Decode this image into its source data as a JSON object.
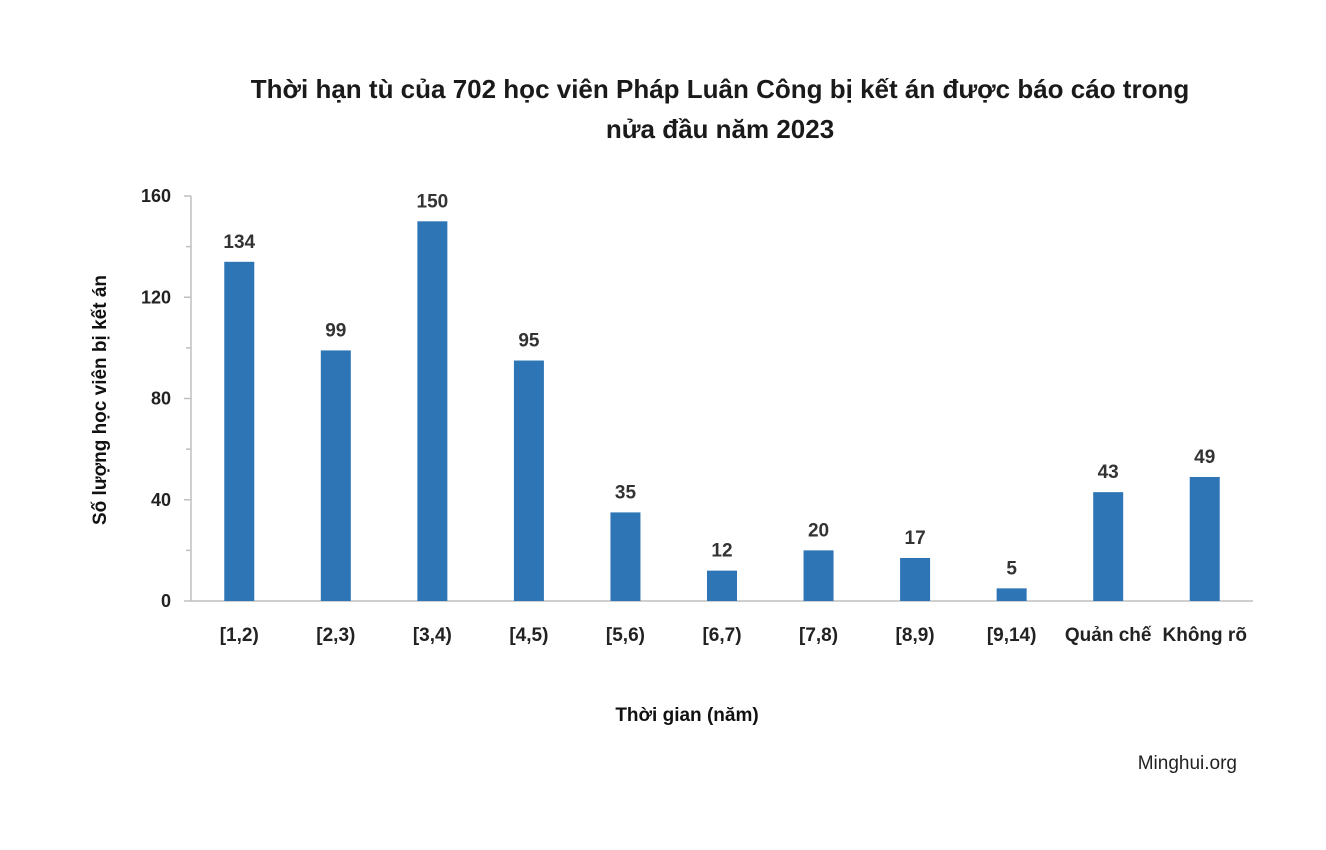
{
  "chart_data": {
    "type": "bar",
    "title": "Thời hạn tù của 702 học viên Pháp Luân Công bị kết án được báo cáo trong nửa đầu năm 2023",
    "title_lines": [
      "Thời hạn tù của 702 học viên Pháp Luân Công bị kết án được báo cáo trong",
      "nửa đầu năm 2023"
    ],
    "xlabel": "Thời gian (năm)",
    "ylabel": "Số lượng học viên bị kết án",
    "categories": [
      "[1,2)",
      "[2,3)",
      "[3,4)",
      "[4,5)",
      "[5,6)",
      "[6,7)",
      "[7,8)",
      "[8,9)",
      "[9,14)",
      "Quản chế",
      "Không rõ"
    ],
    "values": [
      134,
      99,
      150,
      95,
      35,
      12,
      20,
      17,
      5,
      43,
      49
    ],
    "ylim": [
      0,
      160
    ],
    "yticks": [
      0,
      40,
      80,
      120,
      160
    ],
    "grid": false,
    "bar_color": "#2E75B6",
    "source": "Minghui.org"
  }
}
